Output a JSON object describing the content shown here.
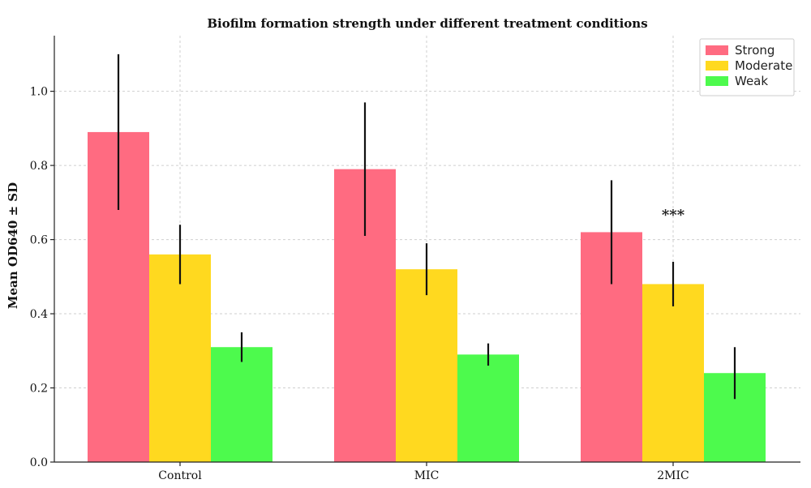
{
  "chart_data": {
    "type": "bar",
    "title": "Biofilm formation strength under different treatment conditions",
    "xlabel": "",
    "ylabel": "Mean OD640 ± SD",
    "categories": [
      "Control",
      "MIC",
      "2MIC"
    ],
    "ylim": [
      0,
      1.15
    ],
    "yticks": [
      "0.0",
      "0.2",
      "0.4",
      "0.6",
      "0.8",
      "1.0"
    ],
    "grid": true,
    "legend_position": "top-right",
    "series": [
      {
        "name": "Strong",
        "color": "#ff6b81",
        "values": [
          0.89,
          0.79,
          0.62
        ],
        "err_low": [
          0.68,
          0.61,
          0.48
        ],
        "err_high": [
          1.1,
          0.97,
          0.76
        ]
      },
      {
        "name": "Moderate",
        "color": "#ffd91f",
        "values": [
          0.56,
          0.52,
          0.48
        ],
        "err_low": [
          0.48,
          0.45,
          0.42
        ],
        "err_high": [
          0.64,
          0.59,
          0.54
        ]
      },
      {
        "name": "Weak",
        "color": "#4dfa4d",
        "values": [
          0.31,
          0.29,
          0.24
        ],
        "err_low": [
          0.27,
          0.26,
          0.17
        ],
        "err_high": [
          0.35,
          0.32,
          0.31
        ]
      }
    ],
    "annotations": [
      {
        "text": "***",
        "category": "2MIC",
        "series": "Moderate",
        "y": 0.68
      }
    ]
  }
}
